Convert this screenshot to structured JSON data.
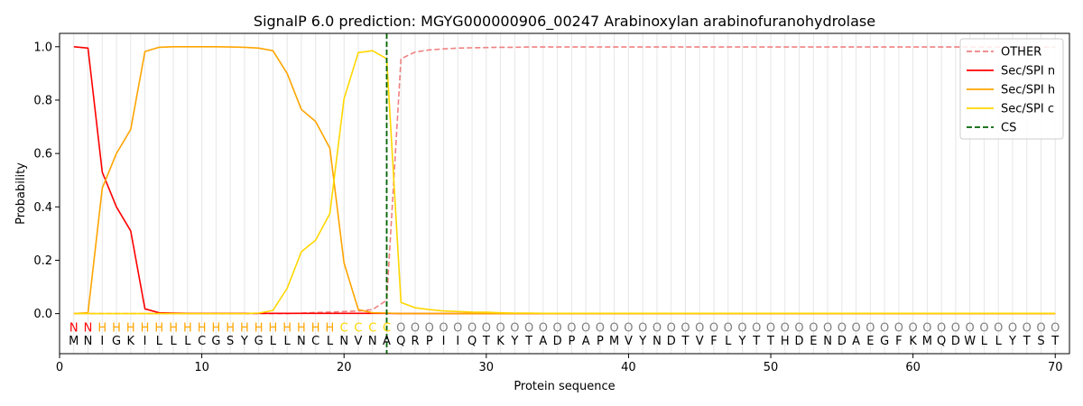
{
  "chart_data": {
    "type": "line",
    "title": "SignalP 6.0 prediction: MGYG000000906_00247 Arabinoxylan arabinofuranohydrolase",
    "xlabel": "Protein sequence",
    "ylabel": "Probability",
    "xlim": [
      0,
      71
    ],
    "ylim": [
      -0.15,
      1.05
    ],
    "xticks": [
      0,
      10,
      20,
      30,
      40,
      50,
      60,
      70
    ],
    "yticks": [
      0.0,
      0.2,
      0.4,
      0.6,
      0.8,
      1.0
    ],
    "ytick_labels": [
      "0.0",
      "0.2",
      "0.4",
      "0.6",
      "0.8",
      "1.0"
    ],
    "grid": "vertical lines at each residue",
    "legend_position": "top-right",
    "x": [
      1,
      2,
      3,
      4,
      5,
      6,
      7,
      8,
      9,
      10,
      11,
      12,
      13,
      14,
      15,
      16,
      17,
      18,
      19,
      20,
      21,
      22,
      23,
      24,
      25,
      26,
      27,
      28,
      29,
      30,
      31,
      32,
      33,
      34,
      35,
      36,
      37,
      38,
      39,
      40,
      41,
      42,
      43,
      44,
      45,
      46,
      47,
      48,
      49,
      50,
      51,
      52,
      53,
      54,
      55,
      56,
      57,
      58,
      59,
      60,
      61,
      62,
      63,
      64,
      65,
      66,
      67,
      68,
      69,
      70
    ],
    "sequence": [
      "M",
      "N",
      "I",
      "G",
      "K",
      "I",
      "L",
      "L",
      "L",
      "C",
      "G",
      "S",
      "Y",
      "G",
      "L",
      "L",
      "N",
      "C",
      "L",
      "N",
      "V",
      "N",
      "A",
      "Q",
      "R",
      "P",
      "I",
      "I",
      "Q",
      "T",
      "K",
      "Y",
      "T",
      "A",
      "D",
      "P",
      "A",
      "P",
      "M",
      "V",
      "Y",
      "N",
      "D",
      "T",
      "V",
      "F",
      "L",
      "Y",
      "T",
      "T",
      "H",
      "D",
      "E",
      "N",
      "D",
      "A",
      "E",
      "G",
      "F",
      "K",
      "M",
      "Q",
      "D",
      "W",
      "L",
      "L",
      "Y",
      "T",
      "S",
      "T"
    ],
    "labels": [
      "N",
      "N",
      "H",
      "H",
      "H",
      "H",
      "H",
      "H",
      "H",
      "H",
      "H",
      "H",
      "H",
      "H",
      "H",
      "H",
      "H",
      "H",
      "H",
      "C",
      "C",
      "C",
      "C",
      "O",
      "O",
      "O",
      "O",
      "O",
      "O",
      "O",
      "O",
      "O",
      "O",
      "O",
      "O",
      "O",
      "O",
      "O",
      "O",
      "O",
      "O",
      "O",
      "O",
      "O",
      "O",
      "O",
      "O",
      "O",
      "O",
      "O",
      "O",
      "O",
      "O",
      "O",
      "O",
      "O",
      "O",
      "O",
      "O",
      "O",
      "O",
      "O",
      "O",
      "O",
      "O",
      "O",
      "O",
      "O",
      "O",
      "O"
    ],
    "label_colors": {
      "N": "#ff0000",
      "H": "#ffa500",
      "C": "#ffd700",
      "O": "#808080"
    },
    "cs_position": 23,
    "series": [
      {
        "name": "OTHER",
        "color": "#f08080",
        "style": "dashed",
        "values": [
          0,
          0,
          0,
          0,
          0,
          0,
          0,
          0,
          0,
          0,
          0,
          0,
          0,
          0,
          0,
          0,
          0.002,
          0.004,
          0.006,
          0.008,
          0.01,
          0.015,
          0.05,
          0.955,
          0.98,
          0.988,
          0.992,
          0.995,
          0.996,
          0.997,
          0.998,
          0.998,
          0.999,
          0.999,
          0.999,
          0.999,
          0.999,
          0.999,
          0.999,
          0.999,
          0.999,
          0.999,
          0.999,
          0.999,
          0.999,
          0.999,
          0.999,
          0.999,
          0.999,
          0.999,
          0.999,
          0.999,
          0.999,
          0.999,
          0.999,
          0.999,
          0.999,
          0.999,
          0.999,
          0.999,
          0.999,
          0.999,
          0.999,
          0.999,
          0.999,
          0.999,
          0.999,
          0.999,
          0.999,
          0.999
        ]
      },
      {
        "name": "Sec/SPI n",
        "color": "#ff0000",
        "style": "solid",
        "values": [
          1.0,
          0.995,
          0.53,
          0.4,
          0.31,
          0.018,
          0.003,
          0.002,
          0.001,
          0.001,
          0.001,
          0.001,
          0.001,
          0.001,
          0.001,
          0.001,
          0.001,
          0.001,
          0.001,
          0.001,
          0.001,
          0.001,
          0.001,
          0,
          0,
          0,
          0,
          0,
          0,
          0,
          0,
          0,
          0,
          0,
          0,
          0,
          0,
          0,
          0,
          0,
          0,
          0,
          0,
          0,
          0,
          0,
          0,
          0,
          0,
          0,
          0,
          0,
          0,
          0,
          0,
          0,
          0,
          0,
          0,
          0,
          0,
          0,
          0,
          0,
          0,
          0,
          0,
          0,
          0,
          0
        ]
      },
      {
        "name": "Sec/SPI h",
        "color": "#ffa500",
        "style": "solid",
        "values": [
          0,
          0.003,
          0.47,
          0.6,
          0.69,
          0.982,
          0.998,
          1.0,
          1.0,
          1.0,
          1.0,
          0.999,
          0.998,
          0.995,
          0.985,
          0.9,
          0.765,
          0.72,
          0.62,
          0.19,
          0.015,
          0.003,
          0.002,
          0,
          0,
          0,
          0,
          0,
          0,
          0,
          0,
          0,
          0,
          0,
          0,
          0,
          0,
          0,
          0,
          0,
          0,
          0,
          0,
          0,
          0,
          0,
          0,
          0,
          0,
          0,
          0,
          0,
          0,
          0,
          0,
          0,
          0,
          0,
          0,
          0,
          0,
          0,
          0,
          0,
          0,
          0,
          0,
          0,
          0,
          0
        ]
      },
      {
        "name": "Sec/SPI c",
        "color": "#ffd700",
        "style": "solid",
        "values": [
          0,
          0,
          0,
          0,
          0,
          0,
          0,
          0,
          0,
          0,
          0,
          0,
          0,
          0.002,
          0.012,
          0.095,
          0.232,
          0.275,
          0.375,
          0.805,
          0.978,
          0.985,
          0.955,
          0.042,
          0.022,
          0.015,
          0.01,
          0.008,
          0.006,
          0.005,
          0.003,
          0.002,
          0.002,
          0.001,
          0.001,
          0.001,
          0.001,
          0.001,
          0.001,
          0.001,
          0.001,
          0.001,
          0.001,
          0.001,
          0.001,
          0.001,
          0.001,
          0.001,
          0.001,
          0.001,
          0.001,
          0.001,
          0.001,
          0.001,
          0.001,
          0.001,
          0.001,
          0.001,
          0.001,
          0.001,
          0.001,
          0.001,
          0.001,
          0.001,
          0.001,
          0.001,
          0.001,
          0.001,
          0.001,
          0.001
        ]
      }
    ],
    "cs_series": {
      "name": "CS",
      "color": "#006400",
      "style": "dashed"
    }
  }
}
